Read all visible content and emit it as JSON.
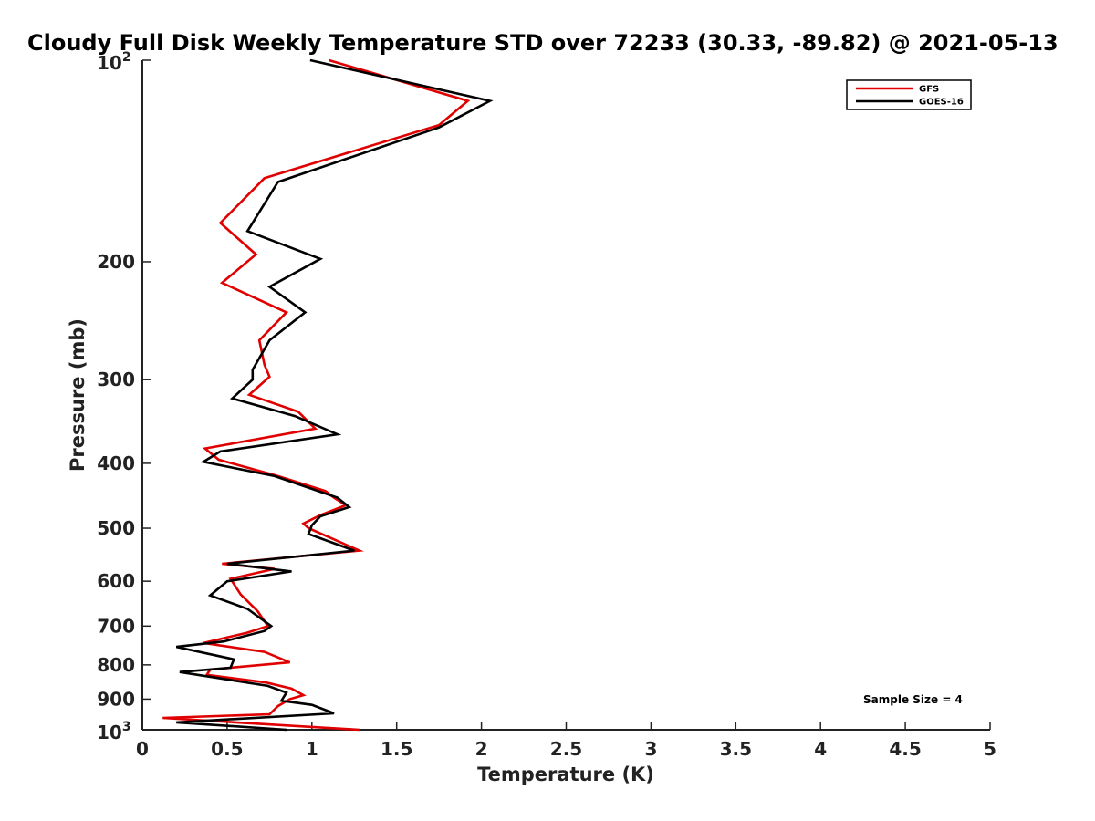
{
  "chart_data": {
    "type": "line",
    "title": "Cloudy Full Disk Weekly Temperature STD over 72233 (30.33, -89.82) @ 2021-05-13",
    "xlabel": "Temperature (K)",
    "ylabel": "Pressure (mb)",
    "xlim": [
      0,
      5
    ],
    "ylim": [
      100,
      1000
    ],
    "y_scale": "log",
    "y_reversed": true,
    "legend_position": "top-right",
    "x_ticks": [
      "0",
      "0.5",
      "1",
      "1.5",
      "2",
      "2.5",
      "3",
      "3.5",
      "4",
      "4.5",
      "5"
    ],
    "y_ticks": [
      {
        "value": 100,
        "base": "10",
        "exp": "2"
      },
      {
        "value": 200,
        "label": "200"
      },
      {
        "value": 300,
        "label": "300"
      },
      {
        "value": 400,
        "label": "400"
      },
      {
        "value": 500,
        "label": "500"
      },
      {
        "value": 600,
        "label": "600"
      },
      {
        "value": 700,
        "label": "700"
      },
      {
        "value": 800,
        "label": "800"
      },
      {
        "value": 900,
        "label": "900"
      },
      {
        "value": 1000,
        "base": "10",
        "exp": "3"
      }
    ],
    "annotation": "Sample Size = 4",
    "series": [
      {
        "name": "GFS",
        "color": "#e00000",
        "points": [
          [
            1.1,
            100
          ],
          [
            1.92,
            115
          ],
          [
            1.75,
            125
          ],
          [
            0.72,
            150
          ],
          [
            0.46,
            175
          ],
          [
            0.67,
            195
          ],
          [
            0.47,
            215
          ],
          [
            0.85,
            238
          ],
          [
            0.69,
            262
          ],
          [
            0.72,
            285
          ],
          [
            0.75,
            297
          ],
          [
            0.63,
            316
          ],
          [
            0.92,
            335
          ],
          [
            1.02,
            355
          ],
          [
            0.37,
            380
          ],
          [
            0.45,
            395
          ],
          [
            0.8,
            418
          ],
          [
            1.08,
            440
          ],
          [
            1.13,
            450
          ],
          [
            1.2,
            462
          ],
          [
            1.05,
            478
          ],
          [
            0.95,
            492
          ],
          [
            0.98,
            500
          ],
          [
            1.28,
            540
          ],
          [
            0.47,
            565
          ],
          [
            0.78,
            575
          ],
          [
            0.52,
            595
          ],
          [
            0.58,
            628
          ],
          [
            0.68,
            665
          ],
          [
            0.74,
            700
          ],
          [
            0.62,
            716
          ],
          [
            0.36,
            742
          ],
          [
            0.72,
            765
          ],
          [
            0.87,
            793
          ],
          [
            0.4,
            813
          ],
          [
            0.38,
            828
          ],
          [
            0.73,
            850
          ],
          [
            0.88,
            868
          ],
          [
            0.95,
            888
          ],
          [
            0.87,
            900
          ],
          [
            0.8,
            922
          ],
          [
            0.75,
            948
          ],
          [
            0.12,
            960
          ],
          [
            0.55,
            975
          ],
          [
            1.28,
            1000
          ]
        ]
      },
      {
        "name": "GOES-16",
        "color": "#000000",
        "points": [
          [
            0.99,
            100
          ],
          [
            2.05,
            115
          ],
          [
            1.75,
            126
          ],
          [
            0.8,
            152
          ],
          [
            0.62,
            180
          ],
          [
            1.05,
            198
          ],
          [
            0.75,
            218
          ],
          [
            0.96,
            238
          ],
          [
            0.75,
            262
          ],
          [
            0.65,
            290
          ],
          [
            0.65,
            300
          ],
          [
            0.53,
            320
          ],
          [
            0.9,
            340
          ],
          [
            1.15,
            362
          ],
          [
            0.46,
            384
          ],
          [
            0.36,
            398
          ],
          [
            0.78,
            418
          ],
          [
            1.15,
            450
          ],
          [
            1.22,
            465
          ],
          [
            1.05,
            480
          ],
          [
            1.0,
            495
          ],
          [
            0.98,
            510
          ],
          [
            1.25,
            540
          ],
          [
            0.5,
            565
          ],
          [
            0.88,
            580
          ],
          [
            0.5,
            600
          ],
          [
            0.4,
            630
          ],
          [
            0.62,
            660
          ],
          [
            0.76,
            700
          ],
          [
            0.72,
            712
          ],
          [
            0.48,
            738
          ],
          [
            0.2,
            752
          ],
          [
            0.54,
            785
          ],
          [
            0.52,
            808
          ],
          [
            0.22,
            820
          ],
          [
            0.74,
            860
          ],
          [
            0.85,
            880
          ],
          [
            0.82,
            905
          ],
          [
            1.0,
            918
          ],
          [
            1.13,
            945
          ],
          [
            0.2,
            975
          ],
          [
            0.85,
            1000
          ]
        ]
      }
    ]
  }
}
